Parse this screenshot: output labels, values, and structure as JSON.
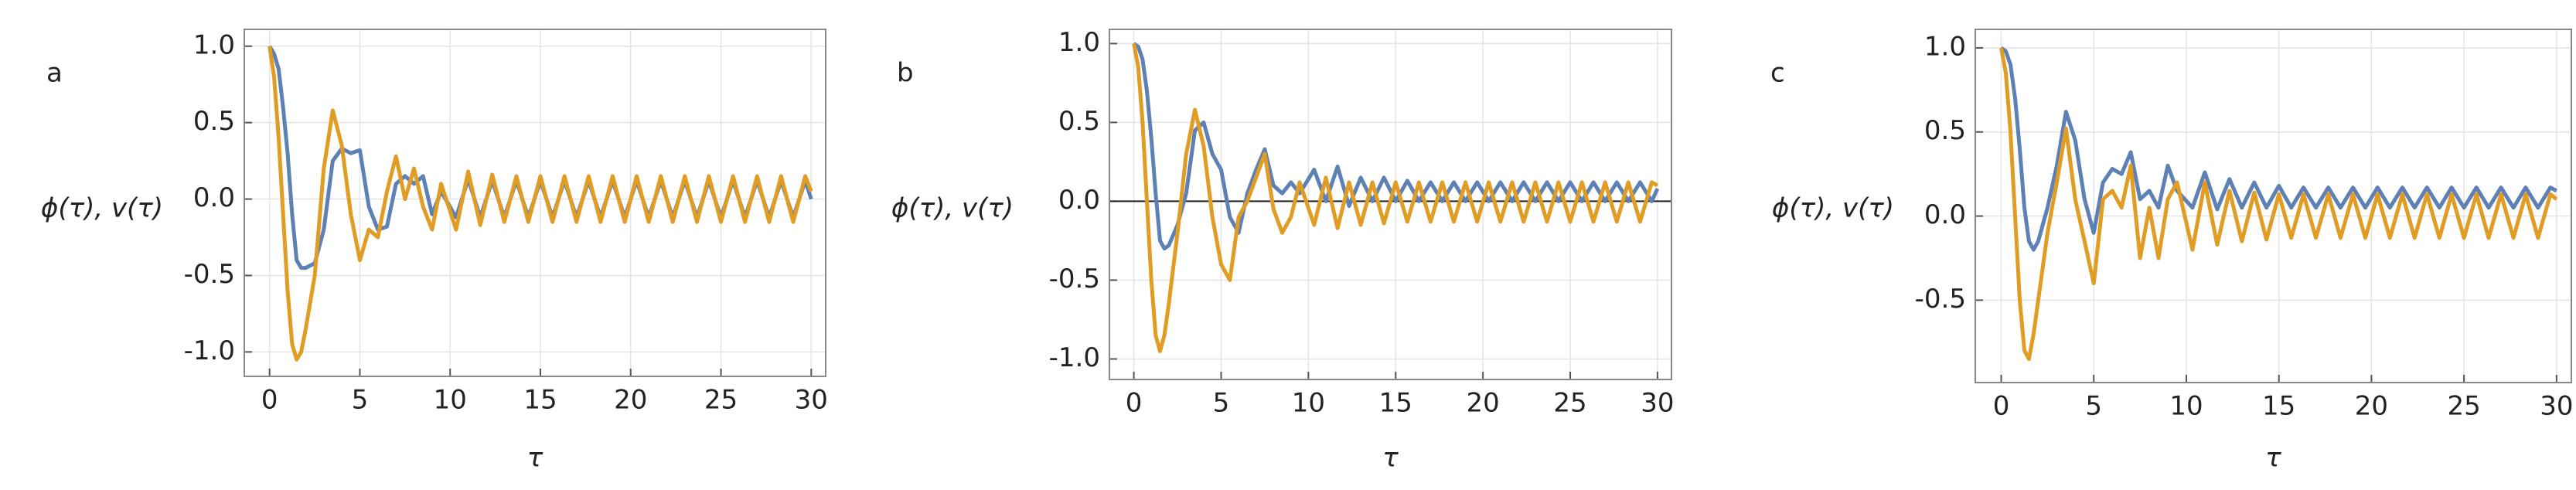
{
  "chart_data": [
    {
      "type": "line",
      "panel_label": "a",
      "y_label": "ϕ(τ), v(τ)",
      "x_label": "τ",
      "grid": true,
      "zero_line": false,
      "xlim": [
        -1.4,
        30.8
      ],
      "ylim": [
        -1.16,
        1.11
      ],
      "xticks": [
        0,
        5,
        10,
        15,
        20,
        25,
        30
      ],
      "yticks": [
        {
          "value": -1,
          "label": "-1.0"
        },
        -0.5,
        {
          "value": 0,
          "label": "0.0"
        },
        0.5,
        {
          "value": 1,
          "label": "1.0"
        }
      ],
      "x": [
        0,
        0.25,
        0.5,
        0.75,
        1,
        1.25,
        1.5,
        1.75,
        2,
        2.5,
        3,
        3.5,
        4,
        4.5,
        5,
        5.5,
        6,
        6.5,
        7,
        7.5,
        8,
        8.5,
        9,
        9.5,
        10.33,
        11,
        11.67,
        12.33,
        13,
        13.67,
        14.33,
        15,
        15.67,
        16.33,
        17,
        17.67,
        18.33,
        19,
        19.67,
        20.33,
        21,
        21.67,
        22.33,
        23,
        23.67,
        24.33,
        25,
        25.67,
        26.33,
        27,
        27.67,
        28.33,
        29,
        29.67,
        30
      ],
      "series": [
        {
          "color": "#5e81b5",
          "values": [
            1.0,
            0.95,
            0.85,
            0.6,
            0.3,
            -0.1,
            -0.4,
            -0.45,
            -0.45,
            -0.42,
            -0.2,
            0.25,
            0.33,
            0.3,
            0.32,
            -0.05,
            -0.2,
            -0.18,
            0.1,
            0.15,
            0.1,
            0.15,
            -0.1,
            0.05,
            -0.12,
            0.13,
            -0.12,
            0.12,
            -0.12,
            0.12,
            -0.12,
            0.12,
            -0.12,
            0.12,
            -0.12,
            0.12,
            -0.12,
            0.12,
            -0.12,
            0.12,
            -0.12,
            0.12,
            -0.12,
            0.12,
            -0.12,
            0.12,
            -0.12,
            0.12,
            -0.12,
            0.12,
            -0.12,
            0.12,
            -0.12,
            0.12,
            0.0
          ]
        },
        {
          "color": "#e19c24",
          "values": [
            1.0,
            0.8,
            0.4,
            -0.1,
            -0.6,
            -0.95,
            -1.05,
            -1.0,
            -0.85,
            -0.5,
            0.2,
            0.58,
            0.35,
            -0.1,
            -0.4,
            -0.2,
            -0.25,
            0.05,
            0.28,
            0.0,
            0.2,
            -0.05,
            -0.2,
            0.1,
            -0.2,
            0.18,
            -0.17,
            0.16,
            -0.15,
            0.15,
            -0.15,
            0.15,
            -0.15,
            0.15,
            -0.15,
            0.15,
            -0.15,
            0.15,
            -0.15,
            0.15,
            -0.15,
            0.15,
            -0.15,
            0.15,
            -0.15,
            0.15,
            -0.15,
            0.15,
            -0.15,
            0.15,
            -0.15,
            0.15,
            -0.15,
            0.15,
            0.05
          ]
        }
      ]
    },
    {
      "type": "line",
      "panel_label": "b",
      "y_label": "ϕ(τ), v(τ)",
      "x_label": "τ",
      "grid": true,
      "zero_line": true,
      "xlim": [
        -1.4,
        30.8
      ],
      "ylim": [
        -1.13,
        1.09
      ],
      "xticks": [
        0,
        5,
        10,
        15,
        20,
        25,
        30
      ],
      "yticks": [
        {
          "value": -1,
          "label": "-1.0"
        },
        -0.5,
        {
          "value": 0,
          "label": "0.0"
        },
        0.5,
        {
          "value": 1,
          "label": "1.0"
        }
      ],
      "x": [
        0,
        0.25,
        0.5,
        0.75,
        1,
        1.25,
        1.5,
        1.75,
        2,
        2.5,
        3,
        3.5,
        4,
        4.5,
        5,
        5.5,
        6,
        6.5,
        7,
        7.5,
        8,
        8.5,
        9,
        9.5,
        10.33,
        11,
        11.67,
        12.33,
        13,
        13.67,
        14.33,
        15,
        15.67,
        16.33,
        17,
        17.67,
        18.33,
        19,
        19.67,
        20.33,
        21,
        21.67,
        22.33,
        23,
        23.67,
        24.33,
        25,
        25.67,
        26.33,
        27,
        27.67,
        28.33,
        29,
        29.67,
        30
      ],
      "series": [
        {
          "color": "#5e81b5",
          "values": [
            1.0,
            0.98,
            0.9,
            0.7,
            0.4,
            0.05,
            -0.25,
            -0.3,
            -0.28,
            -0.15,
            0.05,
            0.45,
            0.5,
            0.3,
            0.2,
            -0.1,
            -0.2,
            0.05,
            0.2,
            0.33,
            0.1,
            0.05,
            0.12,
            0.05,
            0.2,
            0.0,
            0.22,
            -0.03,
            0.15,
            0.0,
            0.15,
            0.0,
            0.13,
            0.0,
            0.12,
            0.0,
            0.12,
            0.0,
            0.12,
            0.0,
            0.12,
            0.0,
            0.12,
            0.0,
            0.12,
            0.0,
            0.12,
            0.0,
            0.12,
            0.0,
            0.12,
            0.0,
            0.12,
            0.0,
            0.08
          ]
        },
        {
          "color": "#e19c24",
          "values": [
            1.0,
            0.85,
            0.5,
            0.0,
            -0.5,
            -0.85,
            -0.95,
            -0.85,
            -0.65,
            -0.2,
            0.3,
            0.58,
            0.35,
            -0.1,
            -0.4,
            -0.5,
            -0.1,
            0.0,
            0.15,
            0.3,
            -0.05,
            -0.2,
            -0.1,
            0.12,
            -0.15,
            0.15,
            -0.17,
            0.12,
            -0.15,
            0.12,
            -0.14,
            0.12,
            -0.13,
            0.12,
            -0.13,
            0.12,
            -0.13,
            0.12,
            -0.13,
            0.12,
            -0.13,
            0.12,
            -0.13,
            0.12,
            -0.13,
            0.12,
            -0.13,
            0.12,
            -0.13,
            0.12,
            -0.13,
            0.12,
            -0.13,
            0.12,
            0.1
          ]
        }
      ]
    },
    {
      "type": "line",
      "panel_label": "c",
      "y_label": "ϕ(τ), v(τ)",
      "x_label": "τ",
      "grid": true,
      "zero_line": false,
      "xlim": [
        -1.4,
        30.8
      ],
      "ylim": [
        -0.99,
        1.11
      ],
      "xticks": [
        0,
        5,
        10,
        15,
        20,
        25,
        30
      ],
      "yticks": [
        -0.5,
        {
          "value": 0,
          "label": "0.0"
        },
        0.5,
        {
          "value": 1,
          "label": "1.0"
        }
      ],
      "x": [
        0,
        0.25,
        0.5,
        0.75,
        1,
        1.25,
        1.5,
        1.75,
        2,
        2.5,
        3,
        3.5,
        4,
        4.5,
        5,
        5.5,
        6,
        6.5,
        7,
        7.5,
        8,
        8.5,
        9,
        9.5,
        10.33,
        11,
        11.67,
        12.33,
        13,
        13.67,
        14.33,
        15,
        15.67,
        16.33,
        17,
        17.67,
        18.33,
        19,
        19.67,
        20.33,
        21,
        21.67,
        22.33,
        23,
        23.67,
        24.33,
        25,
        25.67,
        26.33,
        27,
        27.67,
        28.33,
        29,
        29.67,
        30
      ],
      "series": [
        {
          "color": "#5e81b5",
          "values": [
            1.0,
            0.98,
            0.9,
            0.7,
            0.4,
            0.05,
            -0.15,
            -0.2,
            -0.15,
            0.05,
            0.3,
            0.62,
            0.45,
            0.1,
            -0.1,
            0.2,
            0.28,
            0.25,
            0.38,
            0.1,
            0.15,
            0.05,
            0.3,
            0.15,
            0.05,
            0.26,
            0.04,
            0.22,
            0.05,
            0.2,
            0.05,
            0.18,
            0.05,
            0.17,
            0.05,
            0.17,
            0.05,
            0.17,
            0.05,
            0.17,
            0.05,
            0.17,
            0.05,
            0.17,
            0.05,
            0.17,
            0.05,
            0.17,
            0.05,
            0.17,
            0.05,
            0.17,
            0.05,
            0.17,
            0.15
          ]
        },
        {
          "color": "#e19c24",
          "values": [
            1.0,
            0.85,
            0.5,
            0.0,
            -0.5,
            -0.8,
            -0.85,
            -0.7,
            -0.5,
            -0.1,
            0.2,
            0.52,
            0.1,
            -0.15,
            -0.4,
            0.1,
            0.15,
            0.05,
            0.3,
            -0.25,
            0.05,
            -0.25,
            0.1,
            0.2,
            -0.2,
            0.2,
            -0.17,
            0.15,
            -0.15,
            0.14,
            -0.14,
            0.13,
            -0.13,
            0.13,
            -0.13,
            0.13,
            -0.13,
            0.13,
            -0.13,
            0.13,
            -0.13,
            0.13,
            -0.13,
            0.13,
            -0.13,
            0.13,
            -0.13,
            0.13,
            -0.13,
            0.13,
            -0.13,
            0.13,
            -0.13,
            0.13,
            0.1
          ]
        }
      ]
    }
  ]
}
